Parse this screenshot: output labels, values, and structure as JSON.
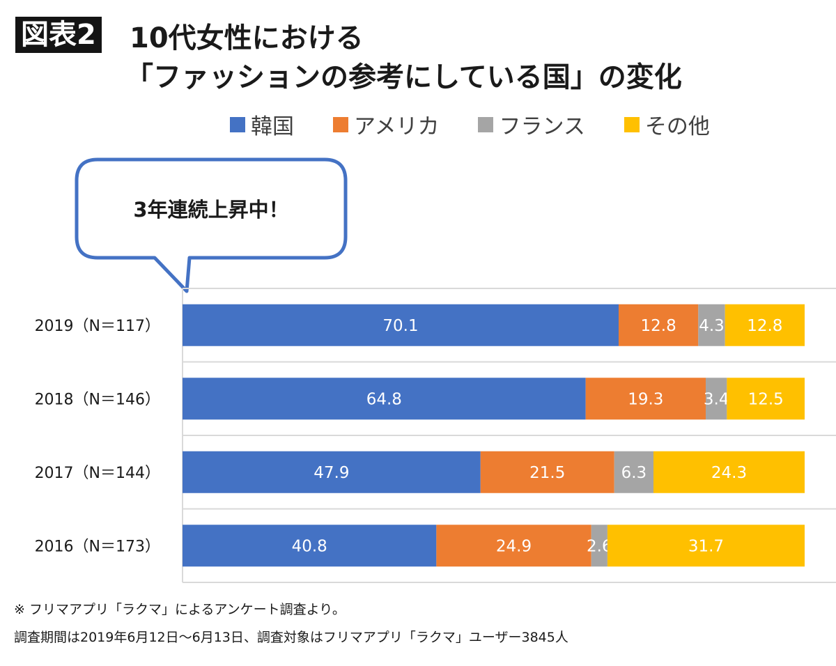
{
  "figure_label": "図表2",
  "title_line1": "10代女性における",
  "title_line2": "「ファッションの参考にしている国」の変化",
  "callout": "3年連続上昇中！",
  "footnotes": [
    "※ フリマアプリ「ラクマ」によるアンケート調査より。",
    "調査期間は2019年6月12日〜6月13日、調査対象はフリマアプリ「ラクマ」ユーザー3845人"
  ],
  "chart_data": {
    "type": "bar",
    "orientation": "horizontal",
    "stacked": true,
    "categories": [
      "2019（N＝117）",
      "2018（N＝146）",
      "2017（N＝144）",
      "2016（N＝173）"
    ],
    "series": [
      {
        "name": "韓国",
        "color": "#4472C4",
        "values": [
          70.1,
          64.8,
          47.9,
          40.8
        ]
      },
      {
        "name": "アメリカ",
        "color": "#ED7D31",
        "values": [
          12.8,
          19.3,
          21.5,
          24.9
        ]
      },
      {
        "name": "フランス",
        "color": "#A5A5A5",
        "values": [
          4.3,
          3.4,
          6.3,
          2.6
        ]
      },
      {
        "name": "その他",
        "color": "#FFC000",
        "values": [
          12.8,
          12.5,
          24.3,
          31.7
        ]
      }
    ],
    "xlim": [
      0,
      100
    ],
    "legend_position": "top",
    "grid": true
  }
}
